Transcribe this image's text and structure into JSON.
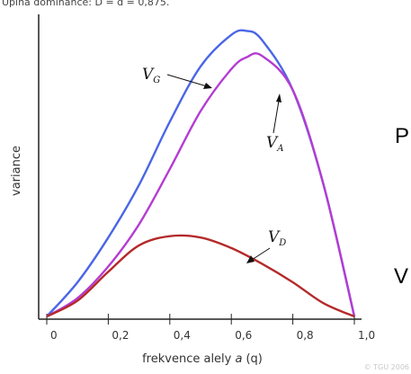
{
  "header_text": "Úplná dominance: D = d = 0,875.",
  "side_letters": [
    "P",
    "V"
  ],
  "copyright": "© TGU 2006",
  "chart_data": {
    "type": "line",
    "title": "",
    "xlabel_main": "frekvence alely ",
    "xlabel_italic_a": "a",
    "xlabel_paren_q": "(q)",
    "ylabel": "variance",
    "xlim": [
      0,
      1
    ],
    "ylim": [
      0,
      1.1
    ],
    "x_ticks": [
      "0",
      "0,2",
      "0,4",
      "0,6",
      "0,8",
      "1,0"
    ],
    "grid": false,
    "colors": {
      "VG": "#4a66e6",
      "VA": "#b43cd2",
      "VD": "#b52a2a",
      "axis": "#222222"
    },
    "series": [
      {
        "key": "VG",
        "name": "V",
        "sub": "G",
        "x": [
          0,
          0.1,
          0.2,
          0.3,
          0.4,
          0.5,
          0.6,
          0.65,
          0.7,
          0.8,
          0.9,
          1.0
        ],
        "y": [
          0,
          0.13,
          0.3,
          0.5,
          0.74,
          0.95,
          1.07,
          1.085,
          1.05,
          0.86,
          0.5,
          0
        ]
      },
      {
        "key": "VA",
        "name": "V",
        "sub": "A",
        "x": [
          0,
          0.1,
          0.2,
          0.3,
          0.4,
          0.5,
          0.6,
          0.65,
          0.7,
          0.8,
          0.9,
          1.0
        ],
        "y": [
          0,
          0.07,
          0.19,
          0.35,
          0.56,
          0.78,
          0.94,
          0.985,
          0.99,
          0.86,
          0.5,
          0
        ]
      },
      {
        "key": "VD",
        "name": "V",
        "sub": "D",
        "x": [
          0,
          0.1,
          0.2,
          0.3,
          0.4,
          0.5,
          0.6,
          0.7,
          0.8,
          0.9,
          1.0
        ],
        "y": [
          0,
          0.06,
          0.17,
          0.27,
          0.305,
          0.3,
          0.26,
          0.2,
          0.13,
          0.05,
          0
        ]
      }
    ]
  }
}
